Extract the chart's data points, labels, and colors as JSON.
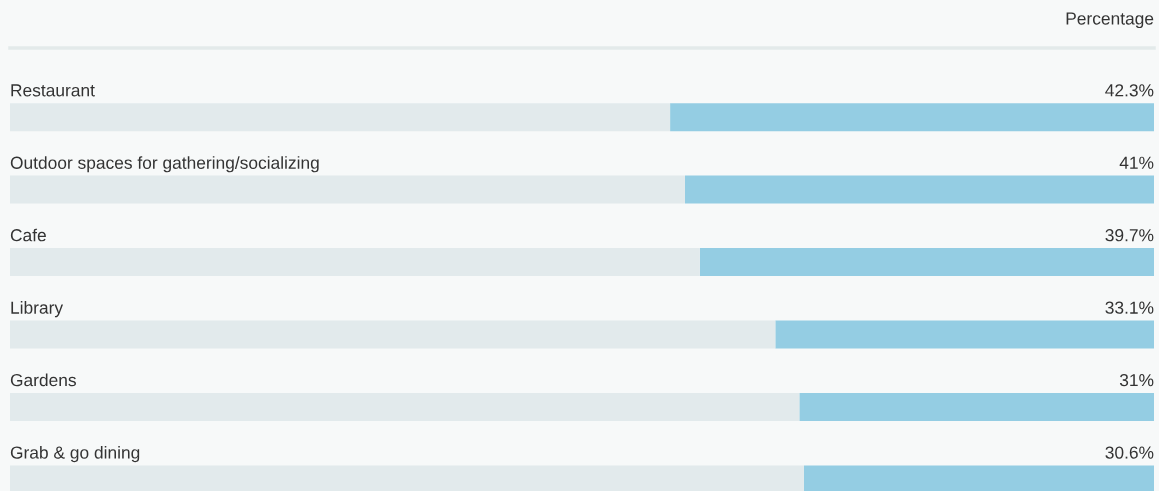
{
  "chart_data": {
    "type": "bar",
    "orientation": "horizontal",
    "stacked": true,
    "title": "Percentage",
    "categories": [
      "Restaurant",
      "Outdoor spaces for gathering/socializing",
      "Cafe",
      "Library",
      "Gardens",
      "Grab & go dining"
    ],
    "series": [
      {
        "color": "#94cde3",
        "values": [
          42.3,
          41,
          39.7,
          33.1,
          31,
          30.6
        ],
        "value_labels": [
          "42.3%",
          "41%",
          "39.7%",
          "33.1%",
          "31%",
          "30.6%"
        ]
      },
      {
        "color": "#e2eaec",
        "values": [
          57.7,
          59,
          60.3,
          66.9,
          69,
          69.4
        ]
      }
    ]
  }
}
